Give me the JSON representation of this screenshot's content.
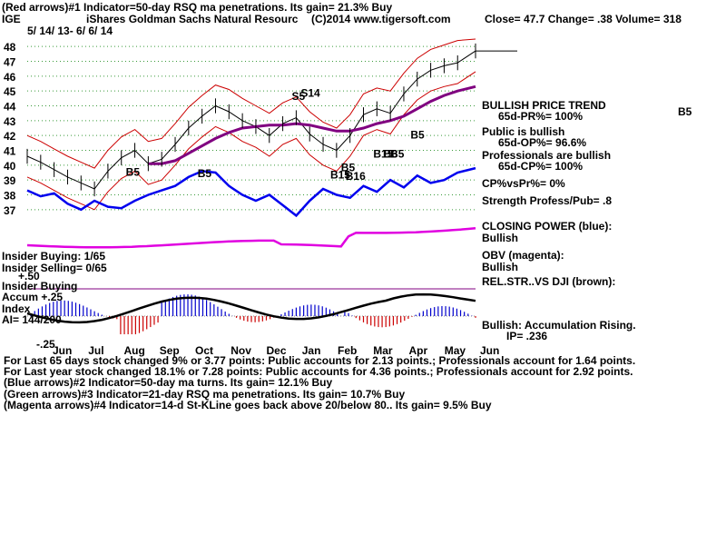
{
  "header": {
    "line1": "(Red arrows)#1 Indicator=50-day RSQ ma penetrations.  Its gain= 21.3% Buy",
    "ticker": "IGE",
    "name": "iShares Goldman Sachs Natural Resourc",
    "copyright": "(C)2014 www.tigersoft.com",
    "quote": "Close=  47.7  Change= .38 Volume=  318",
    "daterange": "5/ 14/ 13-  6/ 6/ 14"
  },
  "right_panel": {
    "trend_title": "BULLISH PRICE TREND",
    "pr": "65d-PR%= 100%",
    "public": "Public is bullish",
    "op": "65d-OP%= 96.6%",
    "pros": "Professionals are bullish",
    "cp": "65d-CP%= 100%",
    "cpvspr": "CP%vsPr%=  0%",
    "strength": "Strength Profess/Pub= .8",
    "closing_power": "CLOSING POWER (blue):",
    "cp_state": "Bullish",
    "obv": "OBV (magenta):",
    "obv_state": "Bullish",
    "relstr": "REL.STR..VS DJI (brown):",
    "accum": "Bullish: Accumulation Rising.",
    "ip": "IP=  .236",
    "b5": "B5"
  },
  "left_panel": {
    "insider_buying": "Insider Buying: 1/65",
    "insider_selling": "Insider Selling= 0/65",
    "plus50": "+.50",
    "insider_buying2": "Insider Buying",
    "accum": "Accum  +.25",
    "index": "Index",
    "ai": "AI= 144/200",
    "minus25": "-.25"
  },
  "footer": {
    "l1": "For Last 65 days stock changed  9% or  3.77 points:  Public accounts for  2.13 points.;  Professionals account for  1.64 points.",
    "l2": "For Last year stock changed  18.1% or  7.28 points:  Public accounts for  4.36 points.;  Professionals account for  2.92 points.",
    "l3": "(Blue arrows)#2 Indicator=50-day ma turns.  Its gain= 12.1% Buy",
    "l4": "(Green arrows)#3 Indicator=21-day RSQ ma penetrations.  Its gain= 10.7% Buy",
    "l5": "(Magenta arrows)#4 Indicator=14-d St-KLine goes back above 20/below 80..  Its gain= 9.5% Buy"
  },
  "signals": [
    {
      "text": "B5",
      "x": 0.22,
      "y": 39.3
    },
    {
      "text": "B5",
      "x": 0.38,
      "y": 39.2
    },
    {
      "text": "S5",
      "x": 0.59,
      "y": 44.4
    },
    {
      "text": "S14",
      "x": 0.61,
      "y": 44.6
    },
    {
      "text": "B5",
      "x": 0.7,
      "y": 39.6
    },
    {
      "text": "B15",
      "x": 0.676,
      "y": 39.1
    },
    {
      "text": "B16",
      "x": 0.71,
      "y": 39.0
    },
    {
      "text": "B15",
      "x": 0.772,
      "y": 40.5
    },
    {
      "text": "B6",
      "x": 0.795,
      "y": 40.5
    },
    {
      "text": "B5",
      "x": 0.81,
      "y": 40.5
    },
    {
      "text": "B5",
      "x": 0.855,
      "y": 41.8
    }
  ],
  "chart_data": {
    "type": "line",
    "title": "iShares Goldman Sachs Natural Resourc",
    "xlabel": "",
    "ylabel": "",
    "ylim": [
      36.5,
      48.5
    ],
    "yticks": [
      37,
      38,
      39,
      40,
      41,
      42,
      43,
      44,
      45,
      46,
      47,
      48
    ],
    "months": [
      "Jun",
      "Jul",
      "Aug",
      "Sep",
      "Oct",
      "Nov",
      "Dec",
      "Jan",
      "Feb",
      "Mar",
      "Apr",
      "May",
      "Jun"
    ],
    "x": [
      0,
      0.03,
      0.06,
      0.09,
      0.12,
      0.15,
      0.18,
      0.21,
      0.24,
      0.27,
      0.3,
      0.33,
      0.36,
      0.39,
      0.42,
      0.45,
      0.48,
      0.51,
      0.54,
      0.57,
      0.6,
      0.63,
      0.66,
      0.69,
      0.72,
      0.75,
      0.78,
      0.81,
      0.84,
      0.87,
      0.9,
      0.93,
      0.96,
      1.0
    ],
    "series": [
      {
        "name": "Price",
        "values": [
          40.6,
          40.2,
          39.7,
          39.2,
          38.8,
          38.4,
          39.6,
          40.5,
          41.0,
          40.1,
          40.4,
          41.4,
          42.5,
          43.3,
          44.0,
          43.6,
          43.0,
          42.6,
          42.0,
          42.8,
          43.2,
          42.1,
          41.4,
          41.0,
          42.0,
          43.4,
          43.8,
          43.5,
          44.8,
          45.8,
          46.4,
          46.7,
          46.9,
          47.7
        ]
      },
      {
        "name": "Price upper band",
        "values": [
          42.0,
          41.6,
          41.1,
          40.6,
          40.2,
          39.8,
          41.0,
          41.9,
          42.4,
          41.6,
          41.8,
          42.8,
          43.9,
          44.7,
          45.4,
          45.1,
          44.5,
          44.0,
          43.5,
          44.2,
          44.6,
          43.6,
          42.9,
          42.5,
          43.4,
          44.8,
          45.2,
          45.0,
          46.2,
          47.2,
          47.8,
          48.1,
          48.4,
          48.5
        ]
      },
      {
        "name": "Price lower band",
        "values": [
          39.2,
          38.8,
          38.3,
          37.8,
          37.4,
          37.0,
          38.2,
          39.1,
          39.6,
          38.7,
          39.0,
          40.0,
          41.1,
          41.9,
          42.6,
          42.2,
          41.6,
          41.2,
          40.6,
          41.4,
          41.8,
          40.7,
          40.0,
          39.6,
          40.6,
          42.0,
          42.4,
          42.1,
          43.4,
          44.4,
          45.0,
          45.3,
          45.5,
          46.3
        ]
      },
      {
        "name": "50-day MA",
        "values": [
          null,
          null,
          null,
          null,
          null,
          null,
          null,
          null,
          null,
          40.1,
          40.1,
          40.3,
          40.8,
          41.3,
          41.8,
          42.2,
          42.5,
          42.6,
          42.7,
          42.7,
          42.8,
          42.7,
          42.5,
          42.3,
          42.3,
          42.5,
          42.8,
          43.0,
          43.3,
          43.8,
          44.3,
          44.7,
          45.0,
          45.3
        ]
      },
      {
        "name": "Closing Power",
        "values": [
          38.3,
          37.9,
          38.1,
          37.4,
          37.0,
          37.6,
          37.2,
          37.1,
          37.6,
          38.0,
          38.3,
          38.6,
          39.2,
          39.6,
          39.5,
          38.6,
          38.0,
          37.6,
          38.0,
          37.3,
          36.6,
          37.6,
          38.4,
          38.0,
          37.8,
          38.6,
          38.2,
          39.0,
          38.5,
          39.3,
          38.8,
          39.0,
          39.5,
          39.8
        ]
      }
    ]
  }
}
